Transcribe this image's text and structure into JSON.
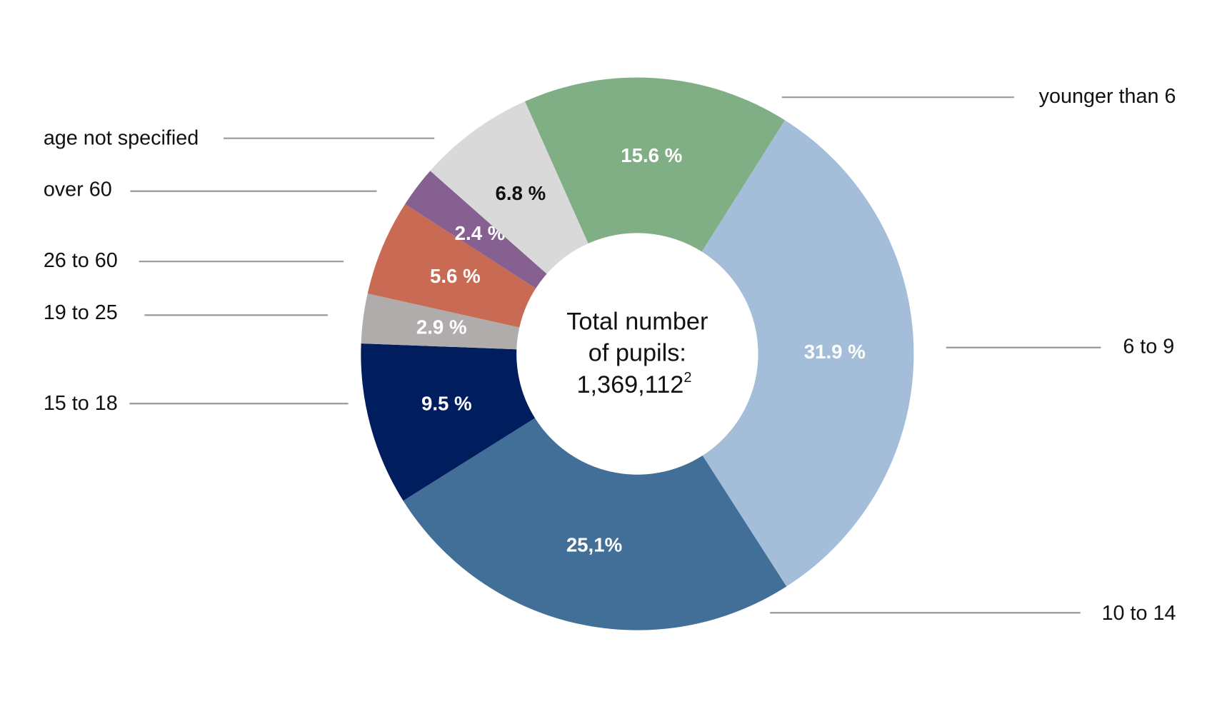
{
  "chart_data": {
    "type": "donut",
    "categories": [
      "younger than 6",
      "6 to 9",
      "10 to 14",
      "15 to 18",
      "19 to 25",
      "26 to 60",
      "over 60",
      "age not specified"
    ],
    "values": [
      15.6,
      31.9,
      25.1,
      9.5,
      2.9,
      5.6,
      2.4,
      6.8
    ],
    "value_labels": [
      "15.6 %",
      "31.9 %",
      "25,1%",
      "9.5 %",
      "2.9 %",
      "5.6 %",
      "2.4 %",
      "6.8 %"
    ],
    "colors": [
      "#80ae85",
      "#a4bdd8",
      "#426f98",
      "#001e5e",
      "#b0acab",
      "#c96b54",
      "#856091",
      "#d9d9d9"
    ],
    "center_text": [
      "Total number",
      "of pupils:"
    ],
    "total": "1,369,112",
    "footnote": "2"
  }
}
